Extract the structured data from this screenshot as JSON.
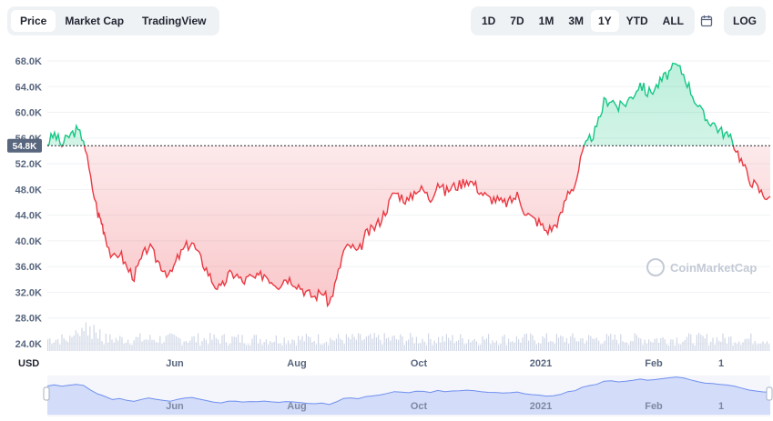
{
  "tabs": [
    {
      "label": "Price",
      "active": true
    },
    {
      "label": "Market Cap",
      "active": false
    },
    {
      "label": "TradingView",
      "active": false
    }
  ],
  "ranges": [
    {
      "label": "1D",
      "active": false
    },
    {
      "label": "7D",
      "active": false
    },
    {
      "label": "1M",
      "active": false
    },
    {
      "label": "3M",
      "active": false
    },
    {
      "label": "1Y",
      "active": true
    },
    {
      "label": "YTD",
      "active": false
    },
    {
      "label": "ALL",
      "active": false
    }
  ],
  "log_label": "LOG",
  "currency_label": "USD",
  "watermark": "CoinMarketCap",
  "colors": {
    "up": "#16c784",
    "down": "#ea3943",
    "volume": "#cfd6e4",
    "navigator": "#6f8ff0"
  },
  "chart_data": {
    "type": "line",
    "y_ticks": [
      "68.0K",
      "64.0K",
      "60.0K",
      "56.0K",
      "52.0K",
      "48.0K",
      "44.0K",
      "40.0K",
      "36.0K",
      "32.0K",
      "28.0K",
      "24.0K"
    ],
    "ylim": [
      24000,
      68000
    ],
    "baseline_value": 54800,
    "baseline_label": "54.8K",
    "x_tick_labels": [
      "Jun",
      "Aug",
      "Oct",
      "2021",
      "Feb",
      "1"
    ],
    "price_points": [
      [
        0,
        55200
      ],
      [
        0.01,
        56600
      ],
      [
        0.02,
        54900
      ],
      [
        0.03,
        56300
      ],
      [
        0.04,
        57200
      ],
      [
        0.05,
        56000
      ],
      [
        0.06,
        49500
      ],
      [
        0.07,
        44300
      ],
      [
        0.075,
        43000
      ],
      [
        0.08,
        41000
      ],
      [
        0.09,
        37000
      ],
      [
        0.1,
        38300
      ],
      [
        0.11,
        35800
      ],
      [
        0.12,
        34500
      ],
      [
        0.13,
        37100
      ],
      [
        0.14,
        39200
      ],
      [
        0.15,
        37300
      ],
      [
        0.16,
        35800
      ],
      [
        0.17,
        34600
      ],
      [
        0.18,
        37200
      ],
      [
        0.19,
        38900
      ],
      [
        0.2,
        39800
      ],
      [
        0.21,
        37600
      ],
      [
        0.22,
        35600
      ],
      [
        0.23,
        33400
      ],
      [
        0.24,
        32400
      ],
      [
        0.25,
        34600
      ],
      [
        0.26,
        34900
      ],
      [
        0.27,
        33600
      ],
      [
        0.28,
        34300
      ],
      [
        0.29,
        34100
      ],
      [
        0.3,
        34900
      ],
      [
        0.31,
        33900
      ],
      [
        0.32,
        33200
      ],
      [
        0.33,
        34300
      ],
      [
        0.34,
        33800
      ],
      [
        0.35,
        32900
      ],
      [
        0.36,
        31800
      ],
      [
        0.37,
        31300
      ],
      [
        0.38,
        32200
      ],
      [
        0.39,
        30200
      ],
      [
        0.4,
        33900
      ],
      [
        0.41,
        38500
      ],
      [
        0.42,
        39200
      ],
      [
        0.43,
        38000
      ],
      [
        0.44,
        40900
      ],
      [
        0.45,
        41800
      ],
      [
        0.46,
        43100
      ],
      [
        0.47,
        45200
      ],
      [
        0.48,
        47600
      ],
      [
        0.49,
        46900
      ],
      [
        0.5,
        46100
      ],
      [
        0.51,
        48100
      ],
      [
        0.52,
        47900
      ],
      [
        0.53,
        46500
      ],
      [
        0.54,
        49200
      ],
      [
        0.55,
        47600
      ],
      [
        0.56,
        48400
      ],
      [
        0.57,
        48700
      ],
      [
        0.58,
        49600
      ],
      [
        0.59,
        48900
      ],
      [
        0.6,
        47600
      ],
      [
        0.61,
        46600
      ],
      [
        0.62,
        46500
      ],
      [
        0.63,
        45800
      ],
      [
        0.64,
        46100
      ],
      [
        0.65,
        47100
      ],
      [
        0.66,
        44800
      ],
      [
        0.67,
        43500
      ],
      [
        0.68,
        42900
      ],
      [
        0.69,
        41600
      ],
      [
        0.7,
        42100
      ],
      [
        0.71,
        43800
      ],
      [
        0.72,
        47600
      ],
      [
        0.73,
        48800
      ],
      [
        0.74,
        53600
      ],
      [
        0.75,
        55800
      ],
      [
        0.76,
        57400
      ],
      [
        0.77,
        61600
      ],
      [
        0.78,
        62100
      ],
      [
        0.79,
        60700
      ],
      [
        0.8,
        61500
      ],
      [
        0.81,
        62700
      ],
      [
        0.82,
        64500
      ],
      [
        0.83,
        63000
      ],
      [
        0.84,
        63700
      ],
      [
        0.85,
        65000
      ],
      [
        0.86,
        66200
      ],
      [
        0.87,
        67300
      ],
      [
        0.88,
        66000
      ],
      [
        0.89,
        63400
      ],
      [
        0.9,
        61000
      ],
      [
        0.91,
        59000
      ],
      [
        0.92,
        58500
      ],
      [
        0.93,
        57200
      ],
      [
        0.94,
        56500
      ],
      [
        0.95,
        55000
      ],
      [
        0.96,
        52500
      ],
      [
        0.97,
        49800
      ],
      [
        0.98,
        48500
      ],
      [
        0.99,
        47200
      ],
      [
        1.0,
        46900
      ]
    ],
    "volume_series": "daily trading volume bars (unlabeled)"
  }
}
